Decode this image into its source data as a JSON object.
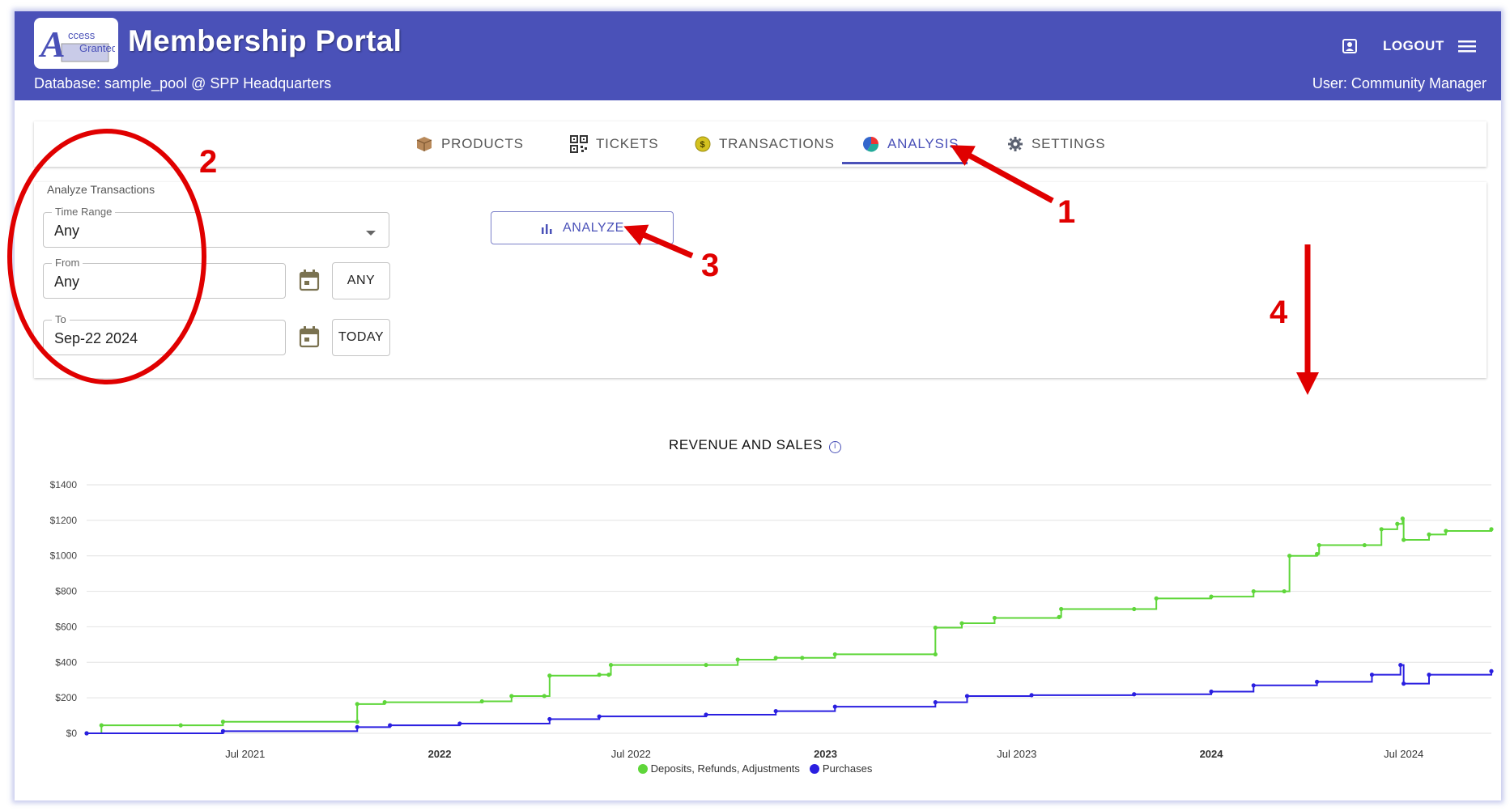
{
  "header": {
    "logo_text": "Access Granted",
    "title": "Membership Portal",
    "database": "Database: sample_pool @ SPP Headquarters",
    "user": "User: Community Manager",
    "logout_label": "LOGOUT"
  },
  "tabs": [
    {
      "label": "PRODUCTS",
      "icon": "box-icon"
    },
    {
      "label": "TICKETS",
      "icon": "qr-code-icon"
    },
    {
      "label": "TRANSACTIONS",
      "icon": "coin-icon"
    },
    {
      "label": "ANALYSIS",
      "icon": "pie-chart-icon",
      "active": true
    },
    {
      "label": "SETTINGS",
      "icon": "gear-icon"
    }
  ],
  "form": {
    "section_label": "Analyze Transactions",
    "time_range": {
      "label": "Time Range",
      "value": "Any"
    },
    "from": {
      "label": "From",
      "value": "Any",
      "button": "ANY"
    },
    "to": {
      "label": "To",
      "value": "Sep-22 2024",
      "button": "TODAY"
    },
    "analyze_label": "ANALYZE"
  },
  "annotations": [
    "1",
    "2",
    "3",
    "4"
  ],
  "colors": {
    "header": "#4a51b8",
    "green": "#5fd63a",
    "blue": "#2a1fe0",
    "annotation": "#e00000"
  },
  "chart_data": {
    "type": "line",
    "title": "REVENUE AND SALES",
    "y_ticks": [
      "$1400",
      "$1200",
      "$1000",
      "$800",
      "$600",
      "$400",
      "$200",
      "$0"
    ],
    "ylim": [
      0,
      1400
    ],
    "x_ticks": [
      {
        "label": "Jul 2021",
        "x": "2021-07-01",
        "bold": false
      },
      {
        "label": "2022",
        "x": "2022-01-01",
        "bold": true
      },
      {
        "label": "Jul 2022",
        "x": "2022-07-01",
        "bold": false
      },
      {
        "label": "2023",
        "x": "2023-01-01",
        "bold": true
      },
      {
        "label": "Jul 2023",
        "x": "2023-07-01",
        "bold": false
      },
      {
        "label": "2024",
        "x": "2024-01-01",
        "bold": true
      },
      {
        "label": "Jul 2024",
        "x": "2024-07-01",
        "bold": false
      }
    ],
    "xlim": [
      "2021-02-01",
      "2024-09-22"
    ],
    "series": [
      {
        "name": "Deposits, Refunds, Adjustments",
        "color": "#5fd63a",
        "points": [
          [
            "2021-02-01",
            0
          ],
          [
            "2021-02-15",
            45
          ],
          [
            "2021-05-01",
            45
          ],
          [
            "2021-06-10",
            65
          ],
          [
            "2021-10-15",
            65
          ],
          [
            "2021-10-15",
            165
          ],
          [
            "2021-11-10",
            175
          ],
          [
            "2022-02-10",
            180
          ],
          [
            "2022-03-10",
            210
          ],
          [
            "2022-04-10",
            210
          ],
          [
            "2022-04-15",
            325
          ],
          [
            "2022-06-01",
            330
          ],
          [
            "2022-06-10",
            330
          ],
          [
            "2022-06-12",
            385
          ],
          [
            "2022-09-10",
            385
          ],
          [
            "2022-10-10",
            415
          ],
          [
            "2022-11-15",
            425
          ],
          [
            "2022-12-10",
            425
          ],
          [
            "2023-01-10",
            445
          ],
          [
            "2023-04-15",
            445
          ],
          [
            "2023-04-15",
            595
          ],
          [
            "2023-05-10",
            620
          ],
          [
            "2023-06-10",
            650
          ],
          [
            "2023-08-10",
            655
          ],
          [
            "2023-08-12",
            700
          ],
          [
            "2023-10-20",
            700
          ],
          [
            "2023-11-10",
            760
          ],
          [
            "2024-01-01",
            770
          ],
          [
            "2024-02-10",
            800
          ],
          [
            "2024-03-10",
            800
          ],
          [
            "2024-03-15",
            1000
          ],
          [
            "2024-04-10",
            1010
          ],
          [
            "2024-04-12",
            1060
          ],
          [
            "2024-05-25",
            1060
          ],
          [
            "2024-06-10",
            1150
          ],
          [
            "2024-06-25",
            1180
          ],
          [
            "2024-06-30",
            1210
          ],
          [
            "2024-07-01",
            1090
          ],
          [
            "2024-07-25",
            1120
          ],
          [
            "2024-08-10",
            1140
          ],
          [
            "2024-09-22",
            1150
          ]
        ]
      },
      {
        "name": "Purchases",
        "color": "#2a1fe0",
        "points": [
          [
            "2021-02-01",
            0
          ],
          [
            "2021-06-10",
            12
          ],
          [
            "2021-10-15",
            35
          ],
          [
            "2021-11-15",
            45
          ],
          [
            "2022-01-20",
            55
          ],
          [
            "2022-04-15",
            80
          ],
          [
            "2022-06-01",
            95
          ],
          [
            "2022-09-10",
            105
          ],
          [
            "2022-11-15",
            125
          ],
          [
            "2023-01-10",
            150
          ],
          [
            "2023-04-15",
            175
          ],
          [
            "2023-05-15",
            210
          ],
          [
            "2023-07-15",
            215
          ],
          [
            "2023-10-20",
            220
          ],
          [
            "2024-01-01",
            235
          ],
          [
            "2024-02-10",
            270
          ],
          [
            "2024-04-10",
            290
          ],
          [
            "2024-06-01",
            330
          ],
          [
            "2024-06-28",
            385
          ],
          [
            "2024-07-01",
            280
          ],
          [
            "2024-07-25",
            330
          ],
          [
            "2024-09-22",
            350
          ]
        ]
      }
    ]
  }
}
